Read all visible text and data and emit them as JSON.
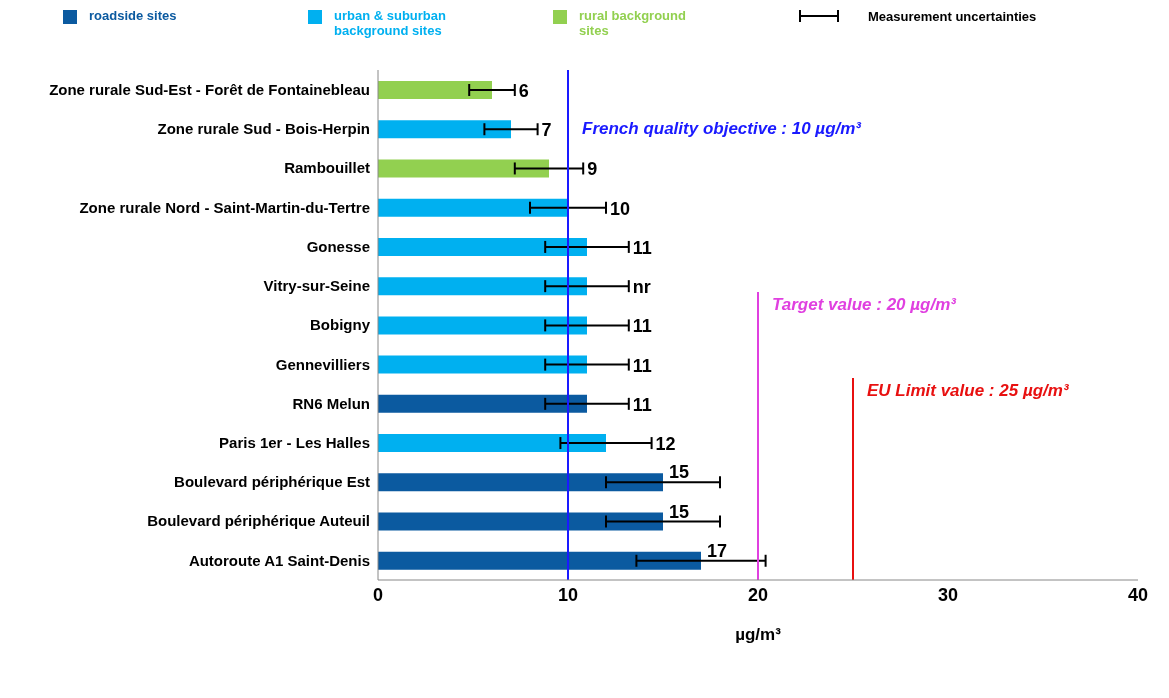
{
  "chart_data": {
    "type": "bar",
    "orientation": "horizontal",
    "stacked": true,
    "categories": [
      "Zone rurale Sud-Est - Forêt de Fontainebleau",
      "Zone rurale Sud - Bois-Herpin",
      "Rambouillet",
      "Zone rurale Nord - Saint-Martin-du-Tertre",
      "Gonesse",
      "Vitry-sur-Seine",
      "Bobigny",
      "Gennevilliers",
      "RN6 Melun",
      "Paris 1er - Les Halles",
      "Boulevard périphérique Est",
      "Boulevard périphérique Auteuil",
      "Autoroute A1 Saint-Denis"
    ],
    "series": [
      {
        "name": "roadside sites",
        "color": "#0b5aa0",
        "values": [
          null,
          null,
          null,
          null,
          null,
          null,
          null,
          null,
          11,
          null,
          15,
          15,
          17
        ],
        "errors": [
          null,
          null,
          null,
          null,
          null,
          null,
          null,
          null,
          2.2,
          null,
          3,
          3,
          3.4
        ],
        "value_labels": [
          null,
          null,
          null,
          null,
          null,
          null,
          null,
          null,
          "11",
          null,
          "15",
          "15",
          "17"
        ]
      },
      {
        "name": "urban & suburban background sites",
        "color": "#00b0f0",
        "values": [
          null,
          7,
          null,
          10,
          11,
          11,
          11,
          11,
          null,
          12,
          null,
          null,
          null
        ],
        "errors": [
          null,
          1.4,
          null,
          2,
          2.2,
          2.2,
          2.2,
          2.2,
          null,
          2.4,
          null,
          null,
          null
        ],
        "value_labels": [
          null,
          "7",
          null,
          "10",
          "11",
          "nr",
          "11",
          "11",
          null,
          "12",
          null,
          null,
          null
        ]
      },
      {
        "name": "rural background sites",
        "color": "#92d050",
        "values": [
          6,
          null,
          9,
          null,
          null,
          null,
          null,
          null,
          null,
          null,
          null,
          null,
          null
        ],
        "errors": [
          1.2,
          null,
          1.8,
          null,
          null,
          null,
          null,
          null,
          null,
          null,
          null,
          null,
          null
        ],
        "value_labels": [
          "6",
          null,
          "9",
          null,
          null,
          null,
          null,
          null,
          null,
          null,
          null,
          null,
          null
        ]
      }
    ],
    "xlim": [
      0,
      40
    ],
    "xticks": [
      0,
      10,
      20,
      30,
      40
    ],
    "xlabel": "µg/m³",
    "grid": false,
    "legend": "top",
    "ref_lines": [
      {
        "axis": "x",
        "value": 10,
        "label": "French quality objective : 10 µg/m³",
        "color": "#1a1aff"
      },
      {
        "axis": "x",
        "value": 20,
        "label": "Target value : 20 µg/m³",
        "color": "#e040e0"
      },
      {
        "axis": "x",
        "value": 25,
        "label": "EU Limit value : 25 µg/m³",
        "color": "#e81010"
      }
    ],
    "annotations": [
      "Measurement uncertainties"
    ]
  }
}
